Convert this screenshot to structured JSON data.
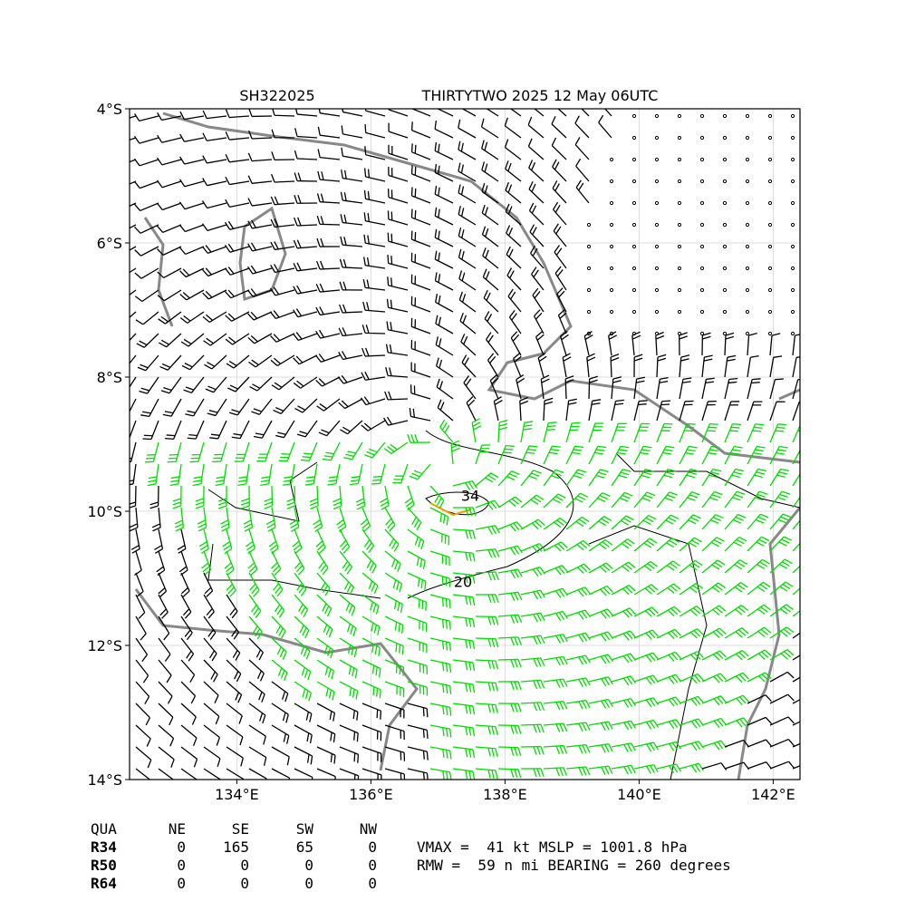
{
  "title": {
    "left": "SH322025",
    "right": "THIRTYTWO 2025 12 May 06UTC"
  },
  "map": {
    "xlim": [
      132.4,
      142.4
    ],
    "ylim": [
      -14,
      -4
    ],
    "xticks": [
      {
        "value": 134,
        "label": "134°E"
      },
      {
        "value": 136,
        "label": "136°E"
      },
      {
        "value": 138,
        "label": "138°E"
      },
      {
        "value": 140,
        "label": "140°E"
      },
      {
        "value": 142,
        "label": "142°E"
      }
    ],
    "yticks": [
      {
        "value": -4,
        "label": "4°S"
      },
      {
        "value": -6,
        "label": "6°S"
      },
      {
        "value": -8,
        "label": "8°S"
      },
      {
        "value": -10,
        "label": "10°S"
      },
      {
        "value": -12,
        "label": "12°S"
      },
      {
        "value": -14,
        "label": "14°S"
      }
    ],
    "contour_labels": [
      "34",
      "20"
    ]
  },
  "table": {
    "header": [
      "QUA",
      "NE",
      "SE",
      "SW",
      "NW"
    ],
    "rows": [
      [
        "R34",
        "0",
        "165",
        "65",
        "0"
      ],
      [
        "R50",
        "0",
        "0",
        "0",
        "0"
      ],
      [
        "R64",
        "0",
        "0",
        "0",
        "0"
      ]
    ]
  },
  "stats": [
    "VMAX =  41 kt MSLP = 1001.8 hPa",
    "RMW =  59 n mi BEARING = 260 degrees"
  ]
}
